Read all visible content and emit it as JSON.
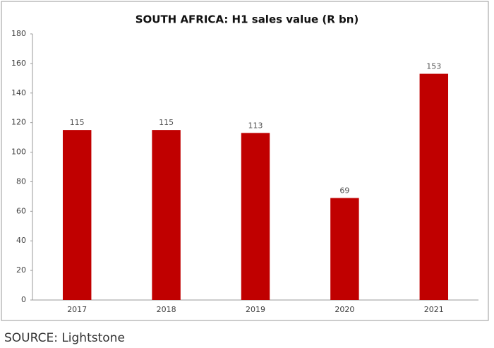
{
  "chart_data": {
    "type": "bar",
    "title": "SOUTH AFRICA: H1 sales value (R bn)",
    "categories": [
      "2017",
      "2018",
      "2019",
      "2020",
      "2021"
    ],
    "values": [
      115,
      115,
      113,
      69,
      153
    ],
    "color": "#c00000",
    "ylim": [
      0,
      180
    ],
    "yticks": [
      0,
      20,
      40,
      60,
      80,
      100,
      120,
      140,
      160,
      180
    ],
    "grid": false,
    "source": "SOURCE: Lightstone"
  }
}
